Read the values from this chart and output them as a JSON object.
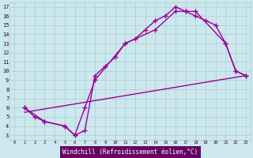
{
  "bg_color": "#cce8ee",
  "grid_color": "#aacccc",
  "line_color": "#990099",
  "marker": "+",
  "markersize": 4,
  "linewidth": 1.0,
  "xlabel": "Windchill (Refroidissement éolien,°C)",
  "xlabel_bg": "#660066",
  "xlabel_color": "#ffffff",
  "ylabel_ticks": [
    3,
    4,
    5,
    6,
    7,
    8,
    9,
    10,
    11,
    12,
    13,
    14,
    15,
    16,
    17
  ],
  "xlim": [
    -0.5,
    23.5
  ],
  "ylim": [
    2.5,
    17.5
  ],
  "xtick_labels": [
    "0",
    "1",
    "2",
    "3",
    "4",
    "5",
    "6",
    "7",
    "8",
    "9",
    "10",
    "11",
    "12",
    "13",
    "14",
    "15",
    "16",
    "17",
    "18",
    "19",
    "20",
    "21",
    "22",
    "23"
  ],
  "line1_x": [
    1,
    2,
    3,
    5,
    6,
    7,
    8,
    9,
    10,
    11,
    12,
    13,
    14,
    15,
    16,
    17,
    18,
    21,
    22,
    23
  ],
  "line1_y": [
    6,
    5,
    4.5,
    4,
    3,
    3.5,
    9.5,
    10.5,
    11.5,
    13,
    13.5,
    14.5,
    15.5,
    16,
    17,
    16.5,
    16.5,
    13,
    10,
    9.5
  ],
  "line2_x": [
    1,
    3,
    5,
    6,
    7,
    8,
    11,
    14,
    16,
    17,
    18,
    19,
    20,
    21,
    22,
    23
  ],
  "line2_y": [
    6,
    4.5,
    4,
    3,
    6,
    9,
    13,
    14.5,
    16.5,
    16.5,
    16,
    15.5,
    15,
    13,
    10,
    9.5
  ],
  "line3_x": [
    1,
    23
  ],
  "line3_y": [
    5.5,
    9.5
  ]
}
